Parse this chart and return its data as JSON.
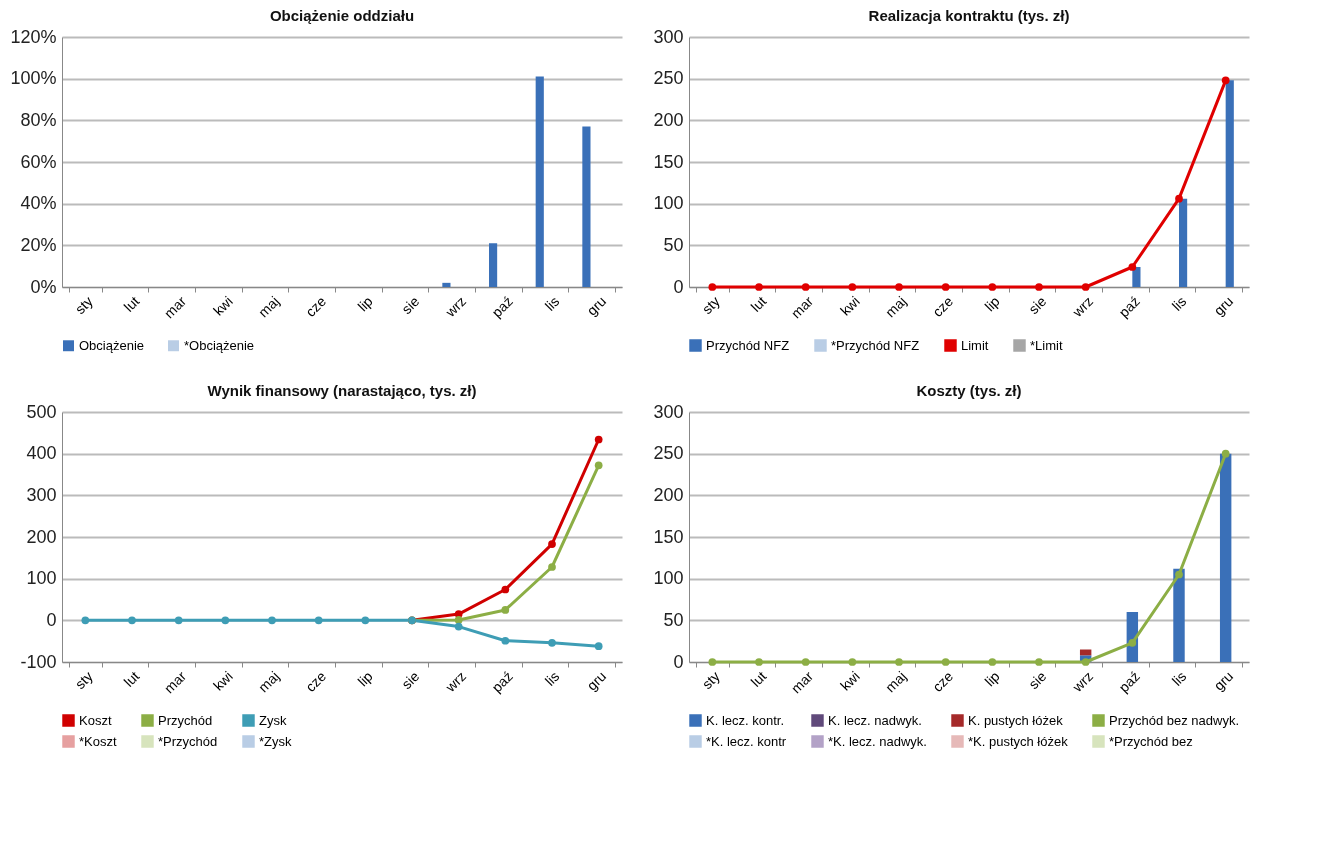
{
  "chart_data": [
    {
      "type": "bar",
      "title": "Obciążenie oddziału",
      "categories": [
        "sty",
        "lut",
        "mar",
        "kwi",
        "maj",
        "cze",
        "lip",
        "sie",
        "wrz",
        "paź",
        "lis",
        "gru"
      ],
      "series": [
        {
          "name": "Obciążenie",
          "color": "#3a70b8",
          "values": [
            0,
            0,
            0,
            0,
            0,
            0,
            0,
            0,
            2,
            21,
            101,
            77
          ]
        },
        {
          "name": "*Obciążenie",
          "color": "#b9cde5",
          "values": [
            null,
            null,
            null,
            null,
            null,
            null,
            null,
            null,
            null,
            null,
            null,
            null
          ]
        }
      ],
      "ylim": [
        0,
        120
      ],
      "yticks": [
        {
          "value": 0,
          "label": "0%"
        },
        {
          "value": 20,
          "label": "20%"
        },
        {
          "value": 40,
          "label": "40%"
        },
        {
          "value": 60,
          "label": "60%"
        },
        {
          "value": 80,
          "label": "80%"
        },
        {
          "value": 100,
          "label": "100%"
        },
        {
          "value": 120,
          "label": "120%"
        }
      ],
      "grid": "y",
      "legend": "bottom"
    },
    {
      "type": "bar",
      "title": "Realizacja kontraktu (tys. zł)",
      "categories": [
        "sty",
        "lut",
        "mar",
        "kwi",
        "maj",
        "cze",
        "lip",
        "sie",
        "wrz",
        "paź",
        "lis",
        "gru"
      ],
      "series": [
        {
          "name": "Przychód NFZ",
          "color": "#3a70b8",
          "values": [
            0,
            0,
            0,
            0,
            0,
            0,
            0,
            0,
            0,
            24,
            106,
            248
          ]
        },
        {
          "name": "*Przychód NFZ",
          "color": "#b9cde5",
          "values": [
            null,
            null,
            null,
            null,
            null,
            null,
            null,
            null,
            null,
            null,
            null,
            null
          ]
        },
        {
          "name": "Limit",
          "type": "line",
          "color": "#e00000",
          "values": [
            0,
            0,
            0,
            0,
            0,
            0,
            0,
            0,
            0,
            24,
            106,
            248
          ]
        },
        {
          "name": "*Limit",
          "type": "line",
          "color": "#a6a6a6",
          "values": [
            null,
            null,
            null,
            null,
            null,
            null,
            null,
            null,
            null,
            null,
            null,
            null
          ]
        }
      ],
      "ylim": [
        0,
        300
      ],
      "yticks": [
        0,
        50,
        100,
        150,
        200,
        250,
        300
      ],
      "grid": "y",
      "legend": "bottom",
      "marker": "circle"
    },
    {
      "type": "line",
      "title": "Wynik finansowy  (narastająco, tys. zł)",
      "categories": [
        "sty",
        "lut",
        "mar",
        "kwi",
        "maj",
        "cze",
        "lip",
        "sie",
        "wrz",
        "paź",
        "lis",
        "gru"
      ],
      "series": [
        {
          "name": "Koszt",
          "color": "#d00000",
          "values": [
            null,
            null,
            null,
            null,
            null,
            null,
            null,
            0,
            15,
            74,
            183,
            434
          ]
        },
        {
          "name": "Przychód",
          "color": "#8cae45",
          "values": [
            null,
            null,
            null,
            null,
            null,
            null,
            null,
            0,
            1,
            25,
            128,
            372
          ]
        },
        {
          "name": "Zysk",
          "color": "#3e9db5",
          "values": [
            0,
            0,
            0,
            0,
            0,
            0,
            0,
            0,
            -15,
            -49,
            -54,
            -62
          ]
        },
        {
          "name": "*Koszt",
          "color": "#e6a0a0",
          "values": [
            null,
            null,
            null,
            null,
            null,
            null,
            null,
            null,
            null,
            null,
            null,
            null
          ]
        },
        {
          "name": "*Przychód",
          "color": "#d7e4bd",
          "values": [
            null,
            null,
            null,
            null,
            null,
            null,
            null,
            null,
            null,
            null,
            null,
            null
          ]
        },
        {
          "name": "*Zysk",
          "color": "#b9cde5",
          "values": [
            null,
            null,
            null,
            null,
            null,
            null,
            null,
            null,
            null,
            null,
            null,
            null
          ]
        }
      ],
      "ylim": [
        -100,
        500
      ],
      "yticks": [
        -100,
        0,
        100,
        200,
        300,
        400,
        500
      ],
      "grid": "y",
      "legend": "bottom",
      "marker": "circle"
    },
    {
      "type": "bar",
      "title": "Koszty (tys. zł)",
      "stacked": true,
      "categories": [
        "sty",
        "lut",
        "mar",
        "kwi",
        "maj",
        "cze",
        "lip",
        "sie",
        "wrz",
        "paź",
        "lis",
        "gru"
      ],
      "series": [
        {
          "name": "K. lecz. kontr.",
          "color": "#3a70b8",
          "values": [
            0,
            0,
            0,
            0,
            0,
            0,
            0,
            0,
            8,
            60,
            112,
            250
          ]
        },
        {
          "name": "K. lecz. nadwyk.",
          "color": "#604a7b",
          "values": [
            null,
            null,
            null,
            null,
            null,
            null,
            null,
            null,
            null,
            null,
            null,
            null
          ]
        },
        {
          "name": "K. pustych łóżek",
          "color": "#a52a2a",
          "values": [
            0,
            0,
            0,
            0,
            0,
            0,
            0,
            0,
            7,
            0,
            0,
            0
          ]
        },
        {
          "name": "Przychód bez nadwyk.",
          "type": "line",
          "color": "#8cae45",
          "values": [
            0,
            0,
            0,
            0,
            0,
            0,
            0,
            0,
            0,
            23,
            105,
            250
          ]
        },
        {
          "name": "*K. lecz. kontr",
          "color": "#b9cde5",
          "values": [
            null,
            null,
            null,
            null,
            null,
            null,
            null,
            null,
            null,
            null,
            null,
            null
          ]
        },
        {
          "name": "*K. lecz. nadwyk.",
          "color": "#b3a2c7",
          "values": [
            null,
            null,
            null,
            null,
            null,
            null,
            null,
            null,
            null,
            null,
            null,
            null
          ]
        },
        {
          "name": "*K. pustych łóżek",
          "color": "#e6b9b8",
          "values": [
            null,
            null,
            null,
            null,
            null,
            null,
            null,
            null,
            null,
            null,
            null,
            null
          ]
        },
        {
          "name": "*Przychód bez",
          "type": "line",
          "color": "#d7e4bd",
          "values": [
            null,
            null,
            null,
            null,
            null,
            null,
            null,
            null,
            null,
            null,
            null,
            null
          ]
        }
      ],
      "ylim": [
        0,
        300
      ],
      "yticks": [
        0,
        50,
        100,
        150,
        200,
        250,
        300
      ],
      "grid": "y",
      "legend": "bottom",
      "marker": "circle"
    }
  ]
}
